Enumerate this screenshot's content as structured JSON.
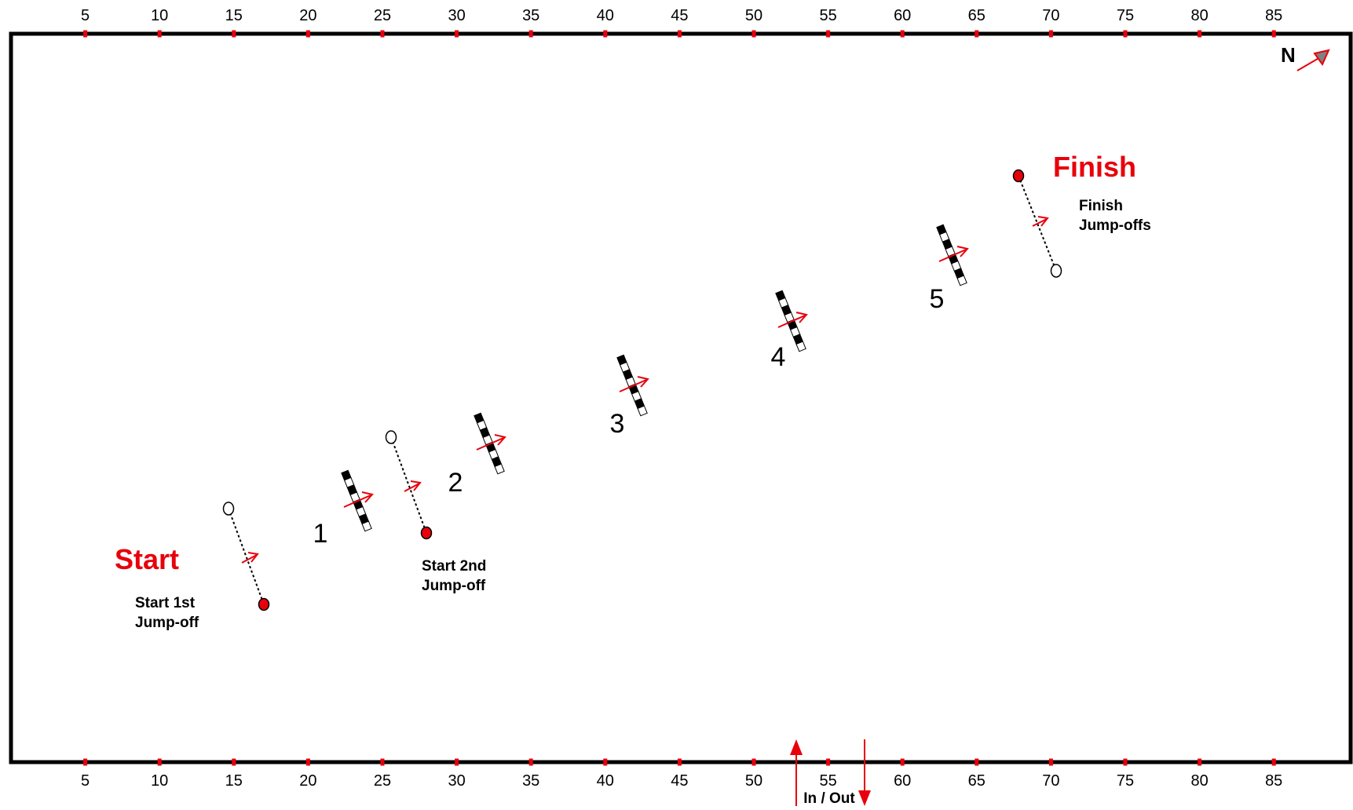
{
  "colors": {
    "accent": "#e8000b",
    "text": "#000000",
    "arena_border": "#000000",
    "north_arrow_fill": "#808080"
  },
  "scale": {
    "ticks": [
      5,
      10,
      15,
      20,
      25,
      30,
      35,
      40,
      45,
      50,
      55,
      60,
      65,
      70,
      75,
      80,
      85
    ]
  },
  "labels": {
    "start": "Start",
    "finish": "Finish",
    "start_1st_line1": "Start 1st",
    "start_1st_line2": "Jump-off",
    "start_2nd_line1": "Start 2nd",
    "start_2nd_line2": "Jump-off",
    "finish_jo_line1": "Finish",
    "finish_jo_line2": "Jump-offs",
    "north": "N",
    "in_out": "In / Out"
  },
  "obstacles": [
    {
      "number": "1"
    },
    {
      "number": "2"
    },
    {
      "number": "3"
    },
    {
      "number": "4"
    },
    {
      "number": "5"
    }
  ],
  "icons": {
    "fence": "striped-rail-fence-icon",
    "direction": "arrow-right-icon",
    "flag_red": "red-flag-marker-icon",
    "flag_white": "white-flag-marker-icon",
    "north": "compass-north-icon",
    "entrance": "entrance-arrows-icon"
  }
}
